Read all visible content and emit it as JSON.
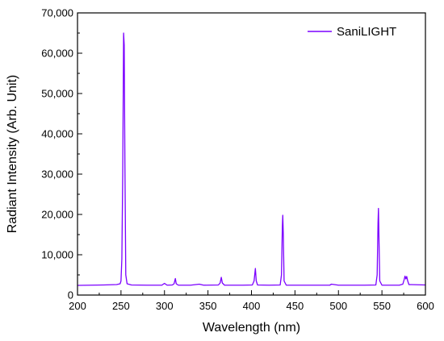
{
  "chart_data": {
    "type": "line",
    "title": "",
    "xlabel": "Wavelength (nm)",
    "ylabel": "Radiant Intensity (Arb. Unit)",
    "xlim": [
      200,
      600
    ],
    "ylim": [
      0,
      70000
    ],
    "x_ticks": [
      200,
      250,
      300,
      350,
      400,
      450,
      500,
      550,
      600
    ],
    "x_tick_labels": [
      "200",
      "250",
      "300",
      "350",
      "400",
      "450",
      "500",
      "550",
      "600"
    ],
    "y_ticks": [
      0,
      10000,
      20000,
      30000,
      40000,
      50000,
      60000,
      70000
    ],
    "y_tick_labels": [
      "0",
      "10,000",
      "20,000",
      "30,000",
      "40,000",
      "50,000",
      "60,000",
      "70,000"
    ],
    "grid": false,
    "legend_position": "top-right",
    "series": [
      {
        "name": "SaniLIGHT",
        "color": "#7b00ff",
        "x": [
          200,
          230,
          245,
          249,
          250,
          251,
          252,
          253,
          253.7,
          254.5,
          255.5,
          257,
          262,
          280,
          297,
          300,
          303,
          309,
          311,
          312.5,
          313.5,
          316,
          330,
          340,
          345,
          362,
          364,
          365.3,
          366.5,
          369,
          390,
          401,
          403,
          404.5,
          405.5,
          407,
          420,
          433,
          434.5,
          435.5,
          436,
          436.6,
          437.5,
          440,
          480,
          490,
          492,
          500,
          530,
          543,
          544.5,
          545.5,
          546,
          546.6,
          547.5,
          550,
          570,
          574,
          575.5,
          576.5,
          577.5,
          578.5,
          579.5,
          581,
          600
        ],
        "y": [
          2400,
          2500,
          2600,
          2800,
          3500,
          9000,
          30000,
          65000,
          62000,
          33000,
          5000,
          2800,
          2500,
          2450,
          2450,
          2900,
          2450,
          2500,
          2800,
          4100,
          2800,
          2450,
          2450,
          2700,
          2450,
          2500,
          3000,
          4400,
          3000,
          2450,
          2450,
          2500,
          3500,
          6600,
          3500,
          2500,
          2450,
          2500,
          5000,
          17000,
          19800,
          15000,
          3500,
          2450,
          2450,
          2450,
          2700,
          2450,
          2450,
          2500,
          5000,
          18000,
          21500,
          14000,
          3500,
          2450,
          2450,
          2700,
          3800,
          4700,
          4000,
          4600,
          3600,
          2600,
          2500
        ]
      }
    ]
  }
}
